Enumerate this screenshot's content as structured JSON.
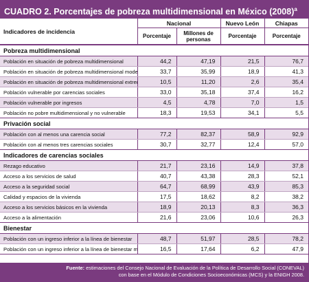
{
  "title": {
    "label": "CUADRO 2.",
    "text": "Porcentajes de pobreza multidimensional en México (2008)",
    "sup": "a"
  },
  "header": {
    "row_label": "Indicadores de incidencia",
    "groups": [
      "Nacional",
      "Nuevo León",
      "Chiapas"
    ],
    "subheaders": [
      "Porcentaje",
      "Millones de personas",
      "Porcentaje",
      "Porcentaje"
    ]
  },
  "sections": [
    {
      "title": "Pobreza multidimensional",
      "rows": [
        {
          "label": "Población en situación de pobreza multidimensional",
          "values": [
            "44,2",
            "47,19",
            "21,5",
            "76,7"
          ]
        },
        {
          "label": "Población en situación de pobreza multidimensional moderada",
          "values": [
            "33,7",
            "35,99",
            "18,9",
            "41,3"
          ]
        },
        {
          "label": "Población en situación de pobreza multidimensional extrema",
          "values": [
            "10,5",
            "11,20",
            "2,6",
            "35,4"
          ]
        },
        {
          "label": "Población vulnerable por carencias sociales",
          "values": [
            "33,0",
            "35,18",
            "37,4",
            "16,2"
          ]
        },
        {
          "label": "Población vulnerable por ingresos",
          "values": [
            "4,5",
            "4,78",
            "7,0",
            "1,5"
          ]
        },
        {
          "label": "Población no pobre multidimensional y no vulnerable",
          "values": [
            "18,3",
            "19,53",
            "34,1",
            "5,5"
          ]
        }
      ]
    },
    {
      "title": "Privación social",
      "rows": [
        {
          "label": "Población con al menos una carencia social",
          "values": [
            "77,2",
            "82,37",
            "58,9",
            "92,9"
          ]
        },
        {
          "label": "Población con al menos tres carencias sociales",
          "values": [
            "30,7",
            "32,77",
            "12,4",
            "57,0"
          ]
        }
      ]
    },
    {
      "title": "Indicadores de carencias sociales",
      "rows": [
        {
          "label": "Rezago educativo",
          "values": [
            "21,7",
            "23,16",
            "14,9",
            "37,8"
          ]
        },
        {
          "label": "Acceso a los servicios de salud",
          "values": [
            "40,7",
            "43,38",
            "28,3",
            "52,1"
          ]
        },
        {
          "label": "Acceso a la seguridad social",
          "values": [
            "64,7",
            "68,99",
            "43,9",
            "85,3"
          ]
        },
        {
          "label": "Calidad y espacios de la vivienda",
          "values": [
            "17,5",
            "18,62",
            "8,2",
            "38,2"
          ]
        },
        {
          "label": "Acceso a los servicios básicos en la vivienda",
          "values": [
            "18,9",
            "20,13",
            "8,3",
            "36,3"
          ]
        },
        {
          "label": "Acceso a la alimentación",
          "values": [
            "21,6",
            "23,06",
            "10,6",
            "26,3"
          ]
        }
      ]
    },
    {
      "title": "Bienestar",
      "rows": [
        {
          "label": "Población con un ingreso inferior a la línea de bienestar",
          "values": [
            "48,7",
            "51,97",
            "28,5",
            "78,2"
          ]
        },
        {
          "label": "Población con un ingreso inferior a la línea de bienestar mínimo",
          "values": [
            "16,5",
            "17,64",
            "6,2",
            "47,9"
          ]
        }
      ]
    }
  ],
  "footer": {
    "label": "Fuente:",
    "line1": "estimaciones del Consejo Nacional de Evaluación de la Política de Desarrollo Social (CONEVAL)",
    "line2": "con base en el Módulo de Condiciones Socioeconómicas (MCS) y la ENIGH 2008."
  }
}
